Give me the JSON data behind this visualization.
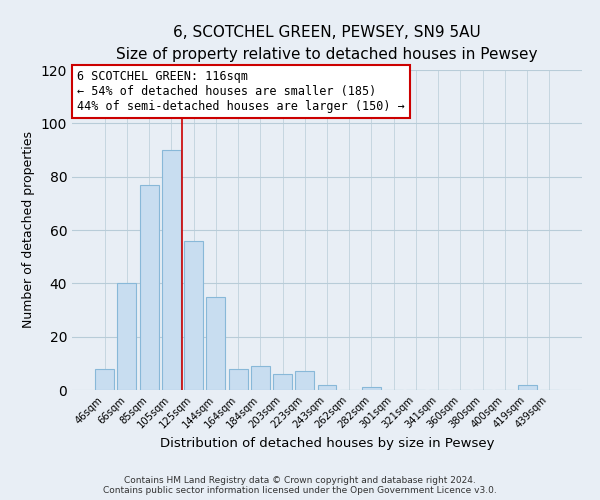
{
  "title": "6, SCOTCHEL GREEN, PEWSEY, SN9 5AU",
  "subtitle": "Size of property relative to detached houses in Pewsey",
  "xlabel": "Distribution of detached houses by size in Pewsey",
  "ylabel": "Number of detached properties",
  "categories": [
    "46sqm",
    "66sqm",
    "85sqm",
    "105sqm",
    "125sqm",
    "144sqm",
    "164sqm",
    "184sqm",
    "203sqm",
    "223sqm",
    "243sqm",
    "262sqm",
    "282sqm",
    "301sqm",
    "321sqm",
    "341sqm",
    "360sqm",
    "380sqm",
    "400sqm",
    "419sqm",
    "439sqm"
  ],
  "values": [
    8,
    40,
    77,
    90,
    56,
    35,
    8,
    9,
    6,
    7,
    2,
    0,
    1,
    0,
    0,
    0,
    0,
    0,
    0,
    2,
    0
  ],
  "bar_color": "#c8ddf0",
  "bar_edge_color": "#88b8d8",
  "ylim": [
    0,
    120
  ],
  "yticks": [
    0,
    20,
    40,
    60,
    80,
    100,
    120
  ],
  "annotation_text": "6 SCOTCHEL GREEN: 116sqm\n← 54% of detached houses are smaller (185)\n44% of semi-detached houses are larger (150) →",
  "annotation_box_color": "#ffffff",
  "annotation_box_edge_color": "#cc0000",
  "vline_color": "#cc0000",
  "vline_x": 3.5,
  "footer_line1": "Contains HM Land Registry data © Crown copyright and database right 2024.",
  "footer_line2": "Contains public sector information licensed under the Open Government Licence v3.0.",
  "background_color": "#e8eef5",
  "plot_bg_color": "#e8eef5",
  "grid_color": "#b8ccd8",
  "title_fontsize": 11,
  "subtitle_fontsize": 9.5
}
